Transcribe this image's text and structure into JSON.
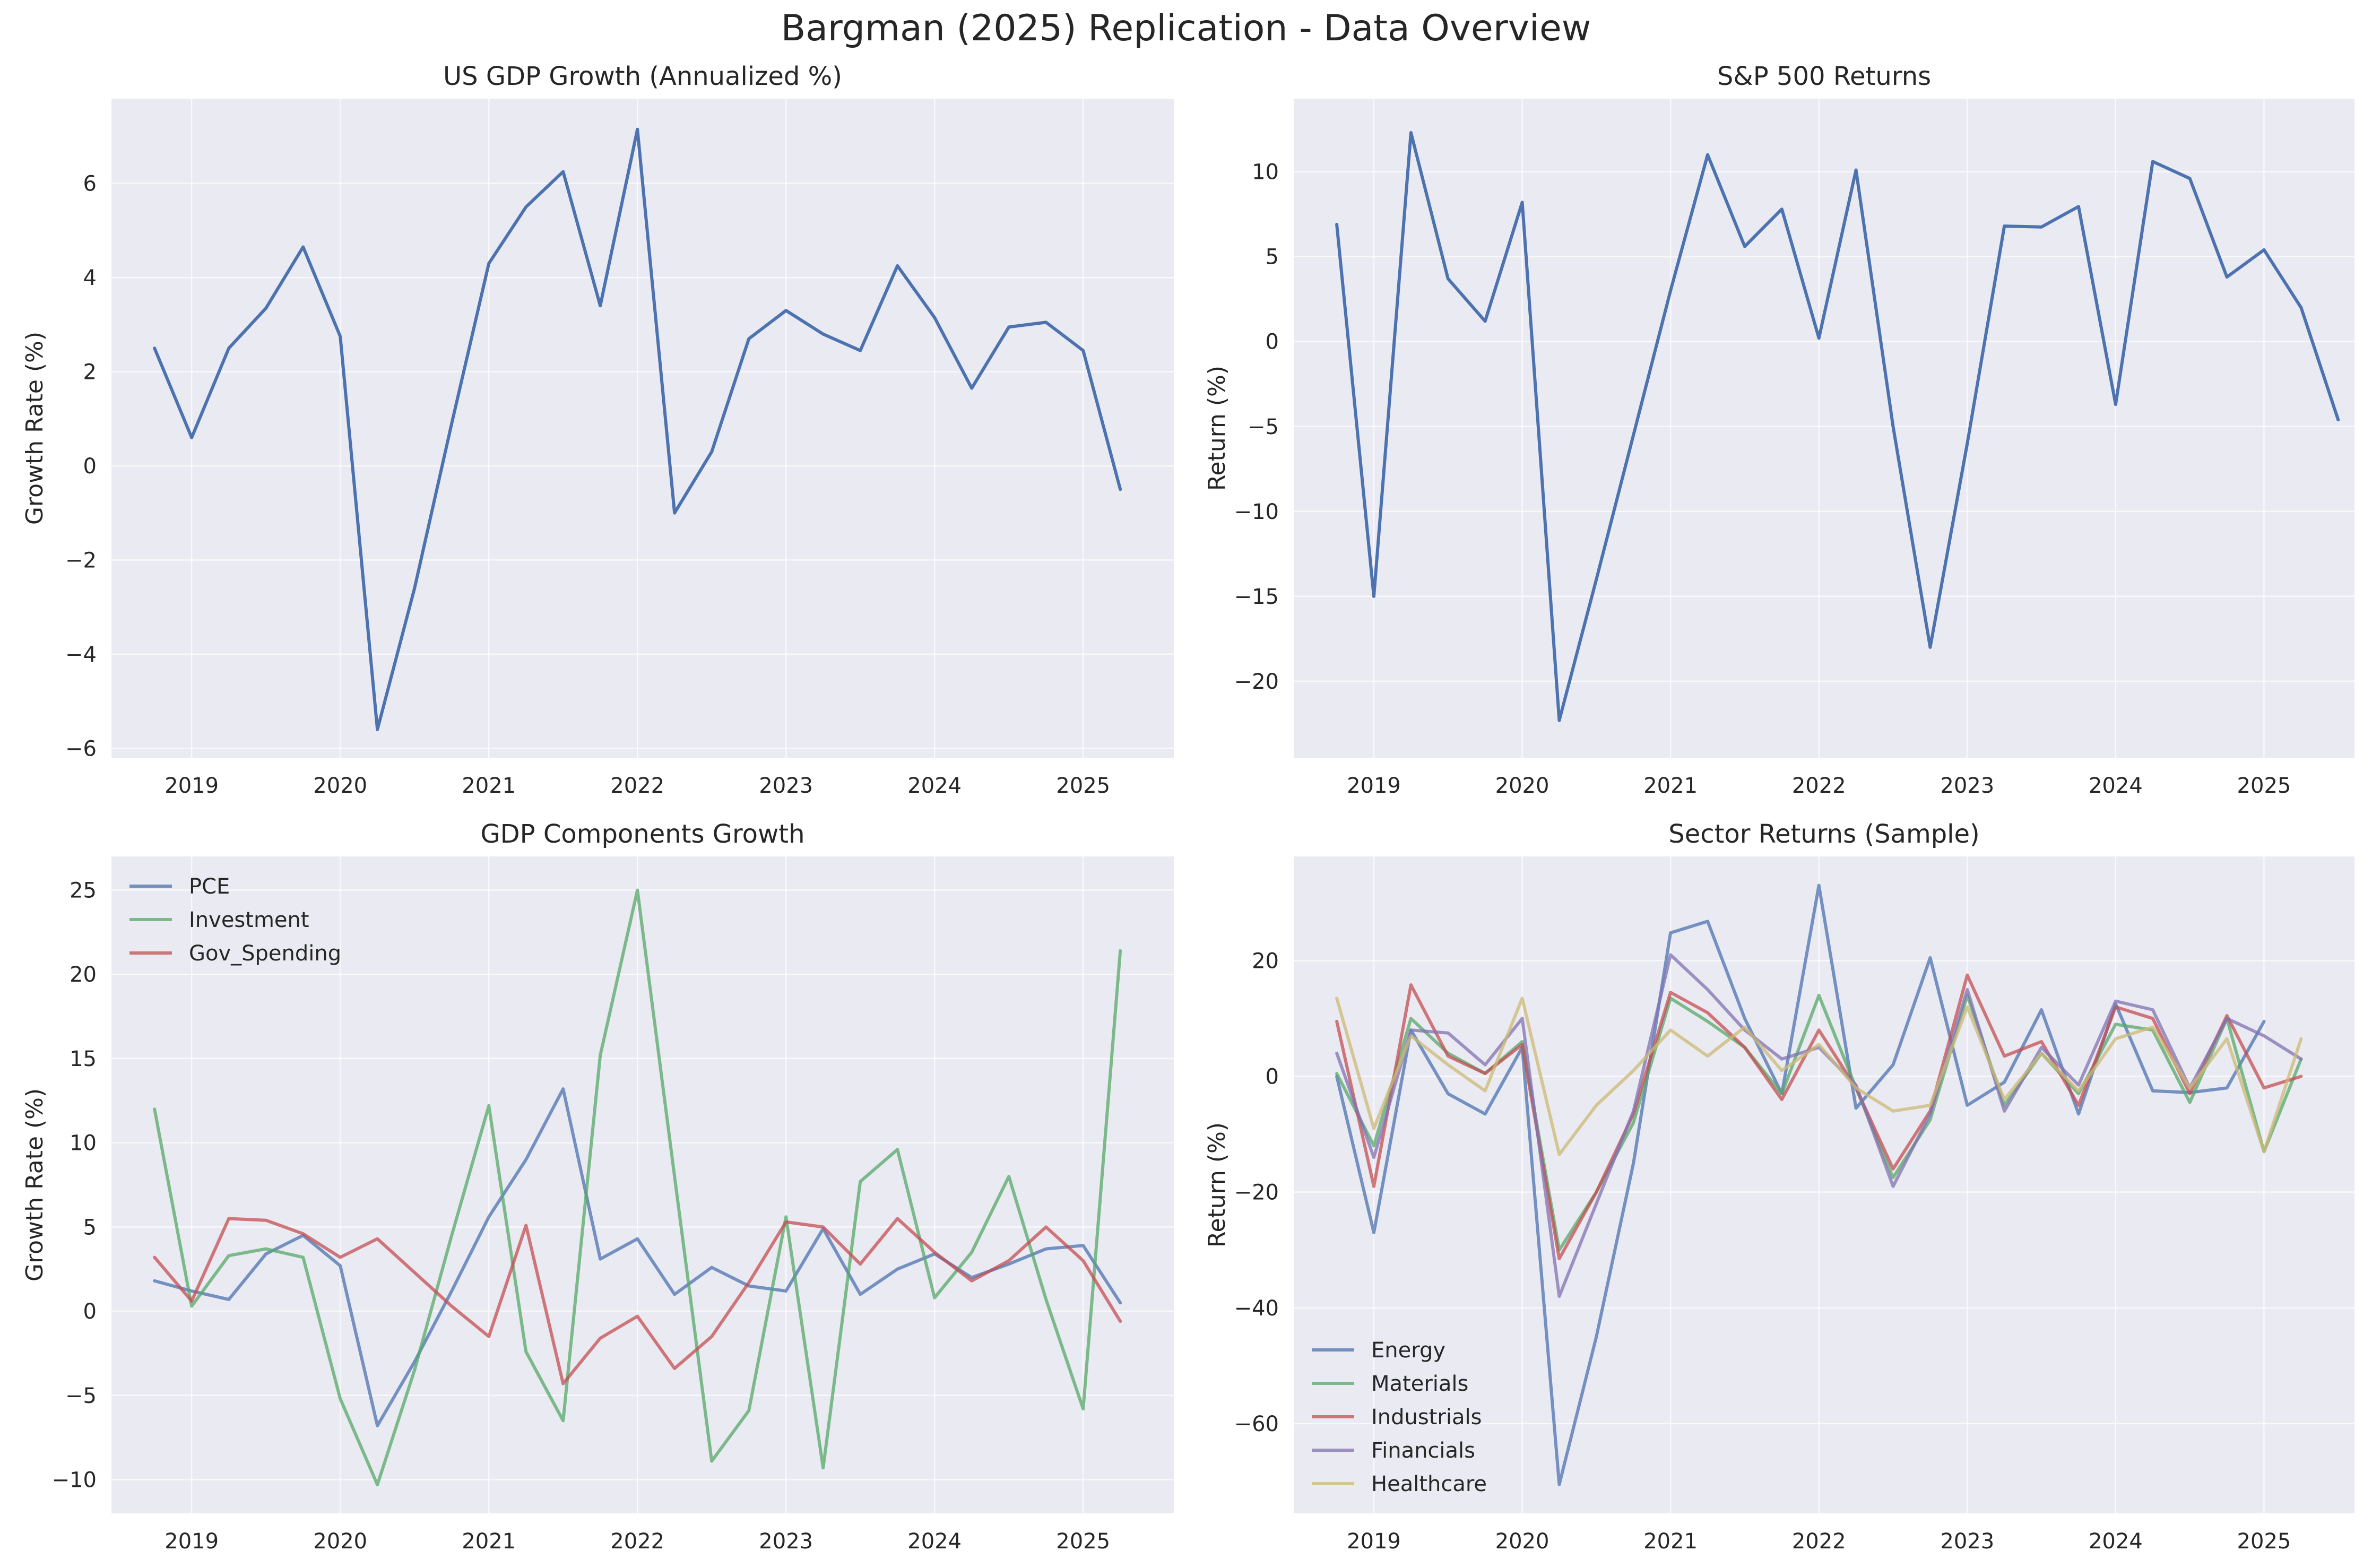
{
  "figure": {
    "title": "Bargman (2025) Replication - Data Overview"
  },
  "colors": {
    "plot_bg": "#eaeaf2",
    "grid": "#ffffff",
    "text": "#262626",
    "blue": "#4c72b0",
    "green": "#55a868",
    "red": "#c44e52",
    "purple": "#8172b3",
    "tan": "#ccb974"
  },
  "chart_data": [
    {
      "id": "gdp",
      "type": "line",
      "title": "US GDP Growth (Annualized %)",
      "xlabel": "",
      "ylabel": "Growth Rate (%)",
      "x_start_year": 2018.75,
      "x_step": 0.25,
      "xlim": [
        2018.46,
        2025.61
      ],
      "ylim": [
        -6.2,
        7.8
      ],
      "xticks": [
        2019,
        2020,
        2021,
        2022,
        2023,
        2024,
        2025
      ],
      "yticks": [
        -6,
        -4,
        -2,
        0,
        2,
        4,
        6
      ],
      "legend": "none",
      "grid": true,
      "series": [
        {
          "color": "#4c72b0",
          "alpha": 1.0,
          "values": [
            2.5,
            0.6,
            2.5,
            3.35,
            4.65,
            2.75,
            -5.6,
            -2.6,
            0.9,
            4.3,
            5.5,
            6.25,
            3.4,
            7.15,
            -1.0,
            0.3,
            2.7,
            3.3,
            2.8,
            2.45,
            4.25,
            3.15,
            1.65,
            2.95,
            3.05,
            2.45,
            -0.5
          ]
        }
      ]
    },
    {
      "id": "sp500",
      "type": "line",
      "title": "S&P 500 Returns",
      "xlabel": "",
      "ylabel": "Return (%)",
      "x_start_year": 2018.75,
      "x_step": 0.25,
      "xlim": [
        2018.46,
        2025.61
      ],
      "ylim": [
        -24.5,
        14.3
      ],
      "xticks": [
        2019,
        2020,
        2021,
        2022,
        2023,
        2024,
        2025
      ],
      "yticks": [
        -20,
        -15,
        -10,
        -5,
        0,
        5,
        10
      ],
      "legend": "none",
      "grid": true,
      "series": [
        {
          "color": "#4c72b0",
          "alpha": 1.0,
          "values": [
            6.9,
            -15.0,
            12.3,
            3.7,
            1.2,
            8.2,
            -22.3,
            -14.0,
            -5.5,
            3.0,
            11.0,
            5.6,
            7.8,
            0.2,
            10.1,
            -5.0,
            -18.0,
            -6.0,
            6.8,
            6.75,
            7.95,
            -3.7,
            10.6,
            9.6,
            3.8,
            5.4,
            2.0,
            -4.6
          ]
        }
      ]
    },
    {
      "id": "components",
      "type": "line",
      "title": "GDP Components Growth",
      "xlabel": "",
      "ylabel": "Growth Rate (%)",
      "x_start_year": 2018.75,
      "x_step": 0.25,
      "xlim": [
        2018.46,
        2025.61
      ],
      "ylim": [
        -12.0,
        27.0
      ],
      "xticks": [
        2019,
        2020,
        2021,
        2022,
        2023,
        2024,
        2025
      ],
      "yticks": [
        -10,
        -5,
        0,
        5,
        10,
        15,
        20,
        25
      ],
      "legend": "upper-left",
      "grid": true,
      "series": [
        {
          "name": "PCE",
          "color": "#4c72b0",
          "alpha": 0.75,
          "values": [
            1.8,
            1.2,
            0.7,
            3.4,
            4.5,
            2.7,
            -6.8,
            -3.0,
            1.2,
            5.6,
            9.0,
            13.2,
            3.1,
            4.3,
            1.0,
            2.6,
            1.5,
            1.2,
            4.9,
            1.0,
            2.5,
            3.4,
            2.0,
            2.8,
            3.7,
            3.9,
            0.5
          ]
        },
        {
          "name": "Investment",
          "color": "#55a868",
          "alpha": 0.75,
          "values": [
            12.0,
            0.3,
            3.3,
            3.7,
            3.2,
            -5.2,
            -10.3,
            -3.5,
            4.5,
            12.2,
            -2.4,
            -6.5,
            15.2,
            25.0,
            8.0,
            -8.9,
            -5.9,
            5.6,
            -9.3,
            7.7,
            9.6,
            0.8,
            3.5,
            8.0,
            0.7,
            -5.8,
            21.4
          ]
        },
        {
          "name": "Gov_Spending",
          "color": "#c44e52",
          "alpha": 0.75,
          "values": [
            3.2,
            0.6,
            5.5,
            5.4,
            4.6,
            3.2,
            4.3,
            2.3,
            0.3,
            -1.5,
            5.1,
            -4.3,
            -1.6,
            -0.3,
            -3.4,
            -1.5,
            1.7,
            5.3,
            5.0,
            2.8,
            5.5,
            3.5,
            1.8,
            3.0,
            5.0,
            3.0,
            -0.6
          ]
        }
      ]
    },
    {
      "id": "sectors",
      "type": "line",
      "title": "Sector Returns (Sample)",
      "xlabel": "",
      "ylabel": "Return (%)",
      "x_start_year": 2018.75,
      "x_step": 0.25,
      "xlim": [
        2018.46,
        2025.61
      ],
      "ylim": [
        -75.5,
        38.0
      ],
      "xticks": [
        2019,
        2020,
        2021,
        2022,
        2023,
        2024,
        2025
      ],
      "yticks": [
        -60,
        -40,
        -20,
        0,
        20
      ],
      "legend": "lower-left",
      "grid": true,
      "series": [
        {
          "name": "Energy",
          "color": "#4c72b0",
          "alpha": 0.75,
          "values": [
            0.0,
            -27.0,
            8.0,
            -3.0,
            -6.5,
            5.0,
            -70.5,
            -45.0,
            -15.0,
            24.8,
            26.8,
            10.0,
            -3.0,
            33.0,
            -5.5,
            2.0,
            20.5,
            -5.0,
            -1.0,
            11.5,
            -6.5,
            12.5,
            -2.5,
            -2.8,
            -2.0,
            9.5
          ]
        },
        {
          "name": "Materials",
          "color": "#55a868",
          "alpha": 0.75,
          "values": [
            0.5,
            -12.0,
            10.0,
            4.0,
            0.5,
            6.0,
            -30.0,
            -20.0,
            -8.0,
            13.5,
            9.5,
            5.0,
            -3.0,
            14.0,
            -2.0,
            -17.5,
            -7.5,
            14.0,
            -5.0,
            4.0,
            -3.0,
            9.0,
            8.0,
            -4.5,
            10.0,
            -13.0,
            3.0
          ]
        },
        {
          "name": "Industrials",
          "color": "#c44e52",
          "alpha": 0.75,
          "values": [
            9.5,
            -19.0,
            15.8,
            3.5,
            0.5,
            5.5,
            -31.5,
            -20.0,
            -6.5,
            14.5,
            11.0,
            5.0,
            -4.0,
            8.0,
            -2.0,
            -16.0,
            -6.0,
            17.5,
            3.5,
            6.0,
            -5.0,
            12.0,
            10.0,
            -3.0,
            10.5,
            -2.0,
            0.0
          ]
        },
        {
          "name": "Financials",
          "color": "#8172b3",
          "alpha": 0.75,
          "values": [
            4.0,
            -14.0,
            8.0,
            7.5,
            2.0,
            10.0,
            -38.0,
            -22.0,
            -6.0,
            21.0,
            15.0,
            8.0,
            3.0,
            5.0,
            -1.5,
            -19.0,
            -6.5,
            15.0,
            -6.0,
            5.0,
            -1.5,
            13.0,
            11.5,
            -2.0,
            10.0,
            7.0,
            3.0
          ]
        },
        {
          "name": "Healthcare",
          "color": "#ccb974",
          "alpha": 0.75,
          "values": [
            13.5,
            -9.0,
            7.0,
            2.0,
            -2.5,
            13.5,
            -13.5,
            -5.0,
            1.0,
            8.0,
            3.5,
            8.5,
            1.0,
            5.5,
            -2.0,
            -6.0,
            -5.0,
            12.0,
            -4.0,
            4.0,
            -2.5,
            6.5,
            8.5,
            -2.0,
            6.5,
            -13.0,
            6.5
          ]
        }
      ]
    }
  ]
}
